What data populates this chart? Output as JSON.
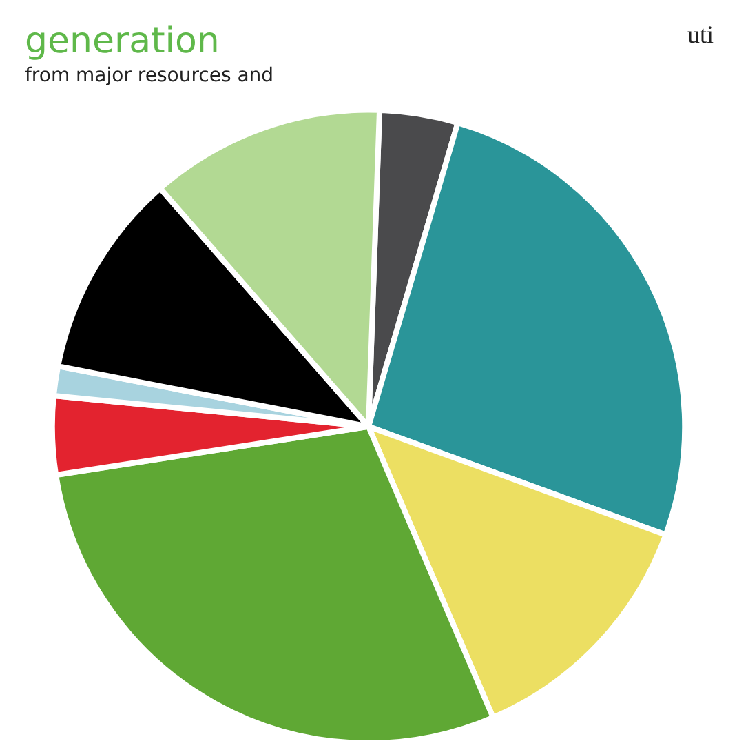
{
  "chart_data": {
    "type": "pie",
    "categories": [
      null,
      null,
      null,
      null,
      null,
      null,
      null,
      null
    ],
    "values": [
      4,
      26,
      13,
      29,
      4,
      1.5,
      10.5,
      12
    ],
    "colors": [
      "#4a4a4c",
      "#2a9599",
      "#ecdf62",
      "#5fa834",
      "#e3232f",
      "#a8d3df",
      "#000000",
      "#b2d993"
    ],
    "annotations": [
      "generation",
      "from major resources and",
      "uti"
    ],
    "legend": false
  }
}
